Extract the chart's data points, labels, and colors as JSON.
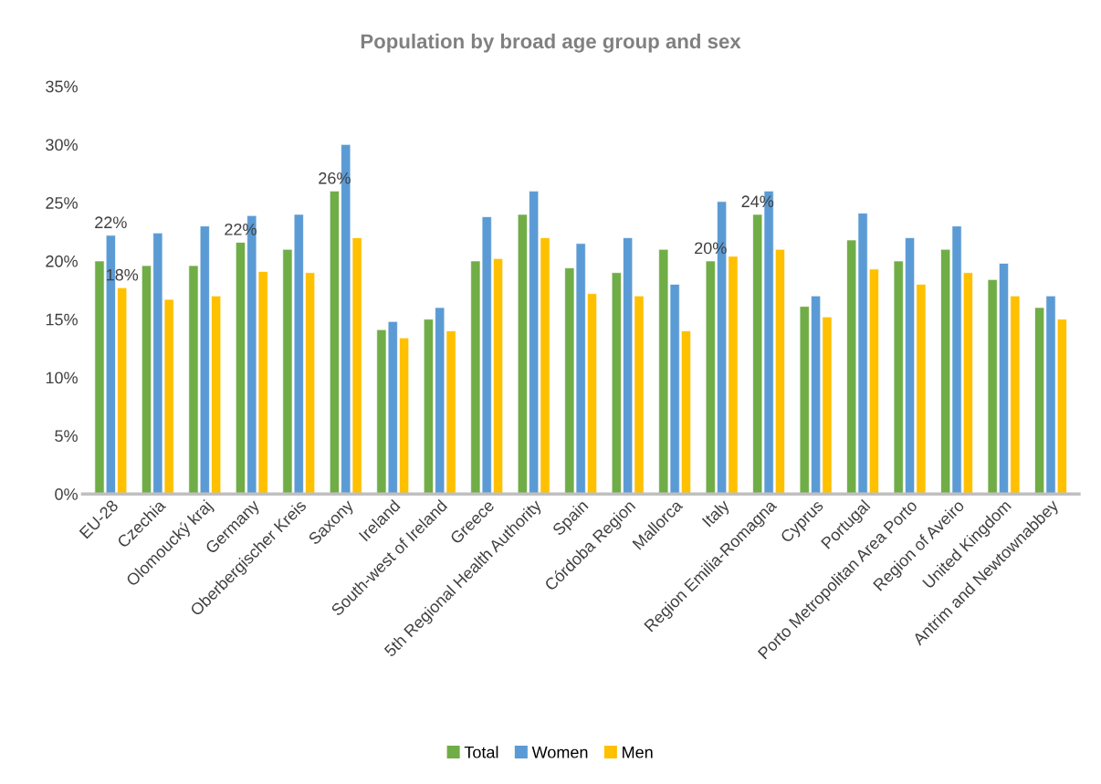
{
  "chart_data": {
    "type": "bar",
    "title": "Population by broad age group and sex",
    "categories": [
      "EU-28",
      "Czechia",
      "Olomoucký kraj",
      "Germany",
      "Oberbergischer Kreis",
      "Saxony",
      "Ireland",
      "South-west of Ireland",
      "Greece",
      "5th Regional Health Authority",
      "Spain",
      "Córdoba Region",
      "Mallorca",
      "Italy",
      "Region Emilia-Romagna",
      "Cyprus",
      "Portugal",
      "Porto Metropolitan Area Porto",
      "Region of Aveiro",
      "United Kingdom",
      "Antrim and Newtownabbey"
    ],
    "series": [
      {
        "name": "Total",
        "color": "#70ad47",
        "values": [
          20,
          19.6,
          19.6,
          21.6,
          21,
          26,
          14.1,
          15,
          20,
          24,
          19.4,
          19,
          21,
          20,
          24,
          16.1,
          21.8,
          20,
          21,
          18.4,
          16
        ],
        "value_labels": [
          null,
          null,
          null,
          "22%",
          null,
          "26%",
          null,
          null,
          null,
          null,
          null,
          null,
          null,
          "20%",
          "24%",
          null,
          null,
          null,
          null,
          null,
          null
        ]
      },
      {
        "name": "Women",
        "color": "#5b9bd5",
        "values": [
          22.2,
          22.4,
          23,
          23.9,
          24,
          30,
          14.8,
          16,
          23.8,
          26,
          21.5,
          22,
          18,
          25.1,
          26,
          17,
          24.1,
          22,
          23,
          19.8,
          17
        ],
        "value_labels": [
          "22%",
          null,
          null,
          null,
          null,
          null,
          null,
          null,
          null,
          null,
          null,
          null,
          null,
          null,
          null,
          null,
          null,
          null,
          null,
          null,
          null
        ]
      },
      {
        "name": "Men",
        "color": "#ffc000",
        "values": [
          17.7,
          16.7,
          17,
          19.1,
          19,
          22,
          13.4,
          14,
          20.2,
          22,
          17.2,
          17,
          14,
          20.4,
          21,
          15.2,
          19.3,
          18,
          19,
          17,
          15
        ],
        "value_labels": [
          "18%",
          null,
          null,
          null,
          null,
          null,
          null,
          null,
          null,
          null,
          null,
          null,
          null,
          null,
          null,
          null,
          null,
          null,
          null,
          null,
          null
        ]
      }
    ],
    "ylim": [
      0,
      35
    ],
    "yticks": [
      {
        "value": 0,
        "label": "0%"
      },
      {
        "value": 5,
        "label": "5%"
      },
      {
        "value": 10,
        "label": "10%"
      },
      {
        "value": 15,
        "label": "15%"
      },
      {
        "value": 20,
        "label": "20%"
      },
      {
        "value": 25,
        "label": "25%"
      },
      {
        "value": 30,
        "label": "30%"
      },
      {
        "value": 35,
        "label": "35%"
      }
    ],
    "grid": false,
    "legend": "bottom"
  }
}
